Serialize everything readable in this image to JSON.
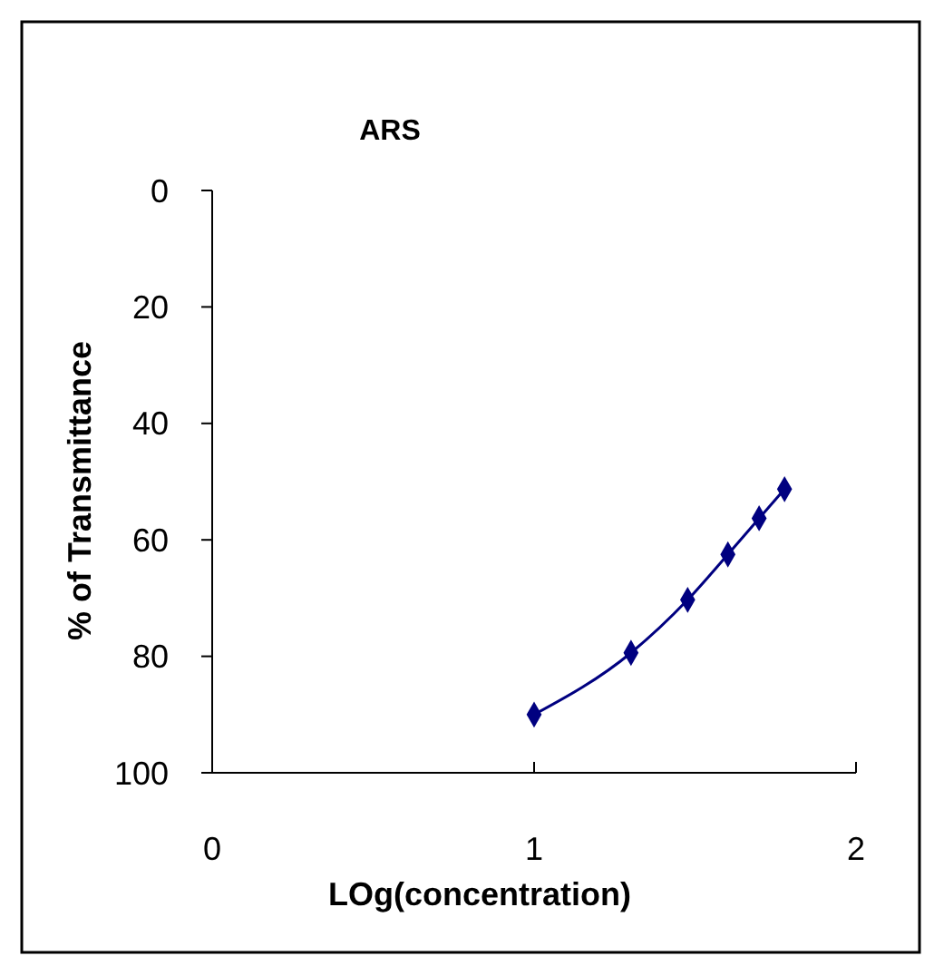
{
  "chart_data": {
    "type": "line",
    "title": "ARS",
    "xlabel": "LOg(concentration)",
    "ylabel": "% of Transmittance",
    "x": [
      1,
      1.301,
      1.477,
      1.602,
      1.699,
      1.778
    ],
    "series": [
      {
        "color": "#000080",
        "values": [
          90,
          79.4,
          70.3,
          62.5,
          56.3,
          51.3
        ]
      }
    ],
    "xlim": [
      0,
      2
    ],
    "xticks": [
      0,
      1,
      2
    ],
    "ylim": [
      100,
      0
    ],
    "yticks": [
      0,
      20,
      40,
      60,
      80,
      100
    ],
    "marker": "diamond",
    "line_style": "solid"
  }
}
